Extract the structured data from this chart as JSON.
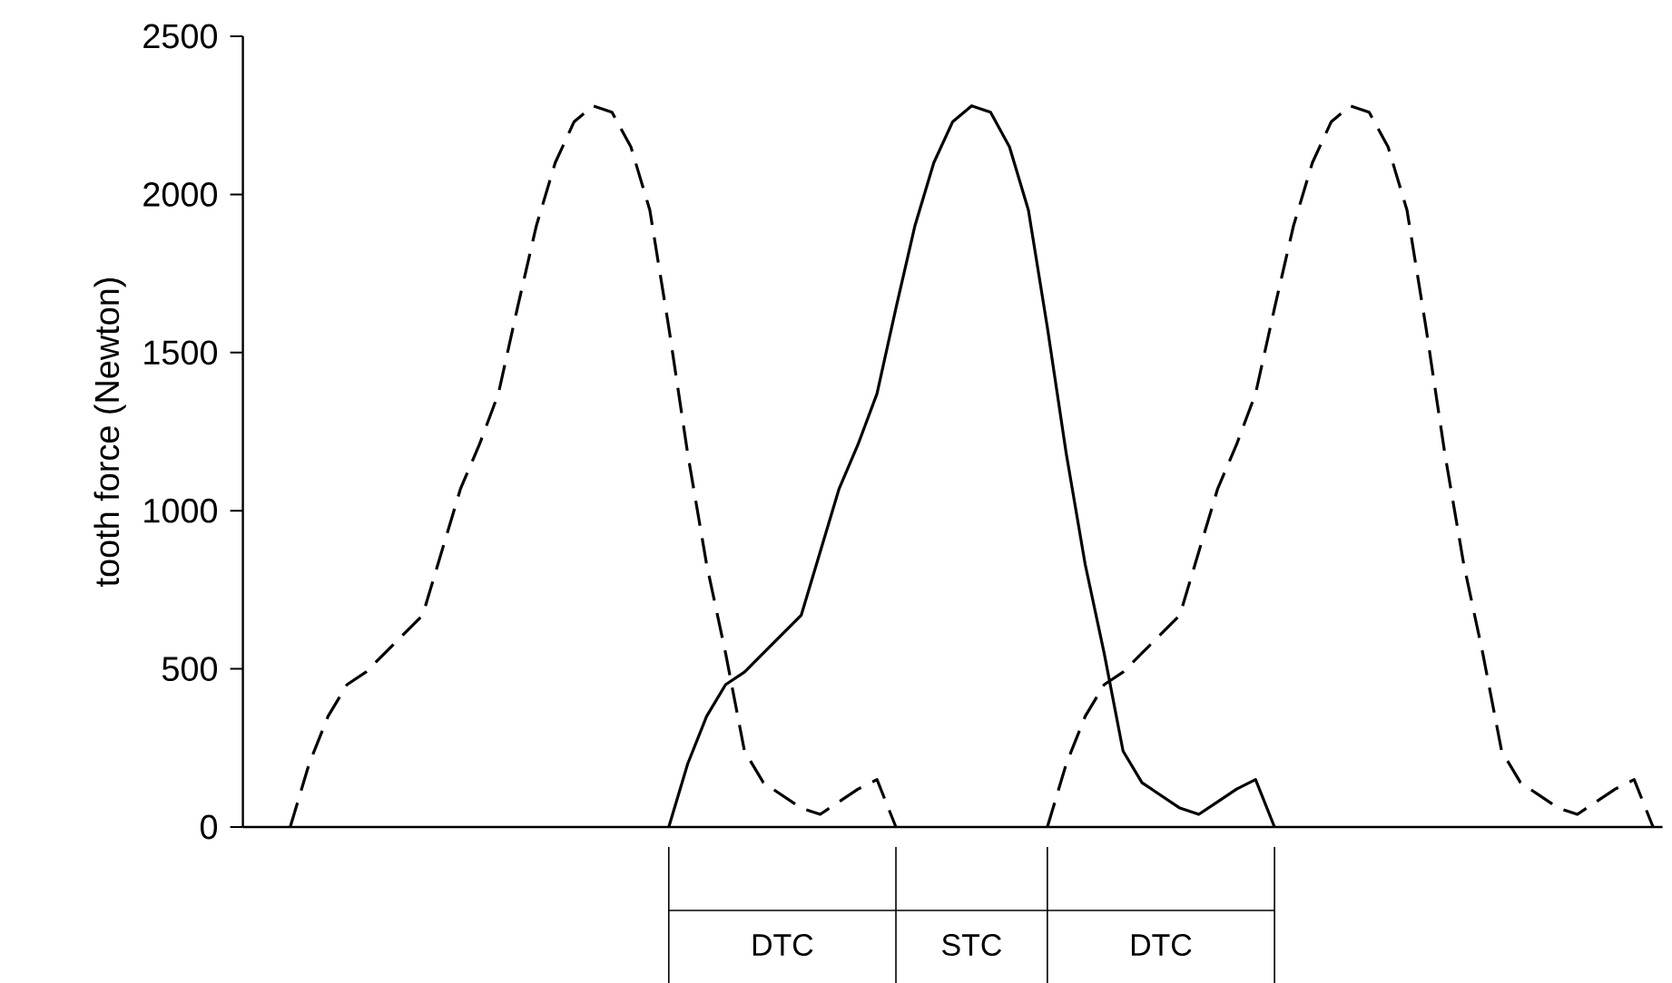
{
  "chart_data": {
    "type": "line",
    "ylabel": "tooth force (Newton)",
    "ylim": [
      0,
      2500
    ],
    "yticks": [
      0,
      500,
      1000,
      1500,
      2000,
      2500
    ],
    "categories": [
      null,
      null,
      null,
      null,
      null,
      null,
      null,
      null,
      null,
      null,
      null,
      null,
      null,
      null,
      null,
      null,
      null,
      null,
      null,
      null,
      null,
      null,
      null,
      null,
      null,
      null,
      null,
      null,
      null,
      null,
      null,
      null,
      null,
      null,
      null,
      null,
      null,
      null,
      null,
      null,
      null,
      null,
      null,
      null,
      null,
      null,
      null,
      null,
      null,
      null,
      null,
      null,
      null,
      null,
      null,
      null,
      null,
      null,
      null,
      null,
      null,
      null,
      null,
      null,
      null,
      null,
      null,
      null,
      null,
      null,
      null,
      null,
      null,
      null,
      null
    ],
    "series": [
      {
        "color": "#000000",
        "line_style": "dashed",
        "values": [
          null,
          null,
          0,
          200,
          350,
          450,
          490,
          550,
          610,
          670,
          870,
          1070,
          1210,
          1370,
          1640,
          1900,
          2100,
          2230,
          2280,
          2260,
          2150,
          1950,
          1580,
          1180,
          830,
          550,
          240,
          140,
          100,
          60,
          40,
          80,
          120,
          150,
          0,
          null,
          null,
          null,
          null,
          null,
          null,
          null,
          null,
          null,
          null,
          null,
          null,
          null,
          null,
          null,
          null,
          null,
          null,
          null,
          null,
          null,
          null,
          null,
          null,
          null,
          null,
          null,
          null,
          null,
          null,
          null,
          null,
          null,
          null,
          null,
          null,
          null,
          null,
          null,
          null
        ]
      },
      {
        "color": "#000000",
        "line_style": "solid",
        "values": [
          null,
          null,
          null,
          null,
          null,
          null,
          null,
          null,
          null,
          null,
          null,
          null,
          null,
          null,
          null,
          null,
          null,
          null,
          null,
          null,
          null,
          null,
          0,
          200,
          350,
          450,
          490,
          550,
          610,
          670,
          870,
          1070,
          1210,
          1370,
          1640,
          1900,
          2100,
          2230,
          2280,
          2260,
          2150,
          1950,
          1580,
          1180,
          830,
          550,
          240,
          140,
          100,
          60,
          40,
          80,
          120,
          150,
          0,
          null,
          null,
          null,
          null,
          null,
          null,
          null,
          null,
          null,
          null,
          null,
          null,
          null,
          null,
          null,
          null,
          null,
          null,
          null,
          null
        ]
      },
      {
        "color": "#000000",
        "line_style": "dashed",
        "values": [
          null,
          null,
          null,
          null,
          null,
          null,
          null,
          null,
          null,
          null,
          null,
          null,
          null,
          null,
          null,
          null,
          null,
          null,
          null,
          null,
          null,
          null,
          null,
          null,
          null,
          null,
          null,
          null,
          null,
          null,
          null,
          null,
          null,
          null,
          null,
          null,
          null,
          null,
          null,
          null,
          null,
          null,
          0,
          200,
          350,
          450,
          490,
          550,
          610,
          670,
          870,
          1070,
          1210,
          1370,
          1640,
          1900,
          2100,
          2230,
          2280,
          2260,
          2150,
          1950,
          1580,
          1180,
          830,
          550,
          240,
          140,
          100,
          60,
          40,
          80,
          120,
          150,
          0
        ]
      }
    ],
    "annotations": [
      "DTC",
      "STC",
      "DTC"
    ]
  }
}
